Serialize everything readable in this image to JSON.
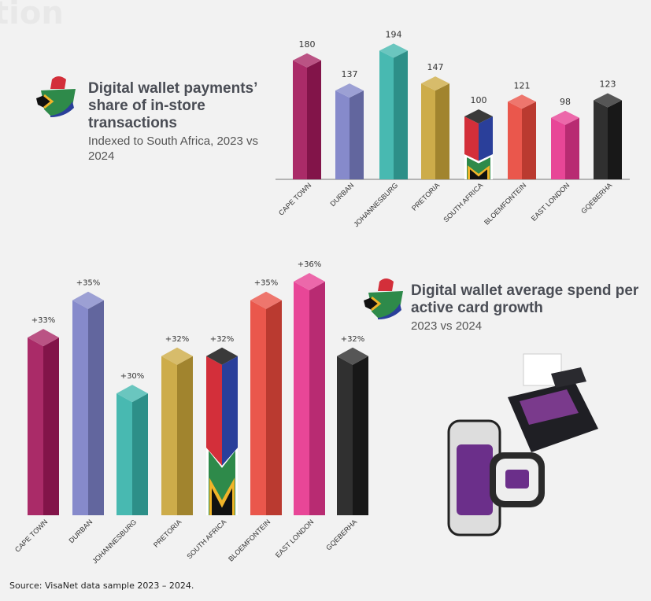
{
  "watermark": "tion",
  "chart_data": [
    {
      "type": "bar",
      "title": "Digital wallet payments’ share of in-store transactions",
      "subtitle": "Indexed to South Africa, 2023 vs 2024",
      "categories": [
        "CAPE TOWN",
        "DURBAN",
        "JOHANNESBURG",
        "PRETORIA",
        "SOUTH AFRICA",
        "BLOEMFONTEIN",
        "EAST LONDON",
        "GQEBERHA"
      ],
      "values": [
        180,
        137,
        194,
        147,
        100,
        121,
        98,
        123
      ],
      "data_labels": [
        "180",
        "137",
        "194",
        "147",
        "100",
        "121",
        "98",
        "123"
      ],
      "ylim": [
        0,
        200
      ],
      "grid": false
    },
    {
      "type": "bar",
      "title": "Digital wallet average spend per active card growth",
      "subtitle": "2023 vs 2024",
      "categories": [
        "CAPE TOWN",
        "DURBAN",
        "JOHANNESBURG",
        "PRETORIA",
        "SOUTH AFRICA",
        "BLOEMFONTEIN",
        "EAST LONDON",
        "GQEBERHA"
      ],
      "values": [
        33,
        35,
        30,
        32,
        32,
        35,
        36,
        32
      ],
      "data_labels": [
        "+33%",
        "+35%",
        "+30%",
        "+32%",
        "+32%",
        "+35%",
        "+36%",
        "+32%"
      ],
      "unit": "%",
      "ylim": [
        23,
        36
      ],
      "grid": false
    }
  ],
  "bar_colors": [
    "#a3195b",
    "#7b80c6",
    "#38b3aa",
    "#c9a53a",
    "flag",
    "#e8483c",
    "#e6368e",
    "#1e1e1e"
  ],
  "source": "Source: VisaNet data sample 2023 – 2024."
}
